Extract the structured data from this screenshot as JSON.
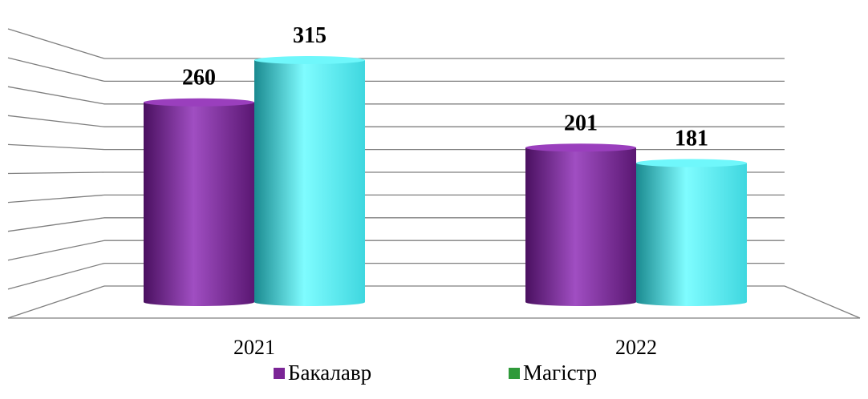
{
  "chart_data": {
    "type": "bar",
    "title": "",
    "xlabel": "",
    "ylabel": "",
    "categories": [
      "2021",
      "2022"
    ],
    "series": [
      {
        "name": "Бакалавр",
        "values": [
          260,
          201
        ],
        "color": "#8b2ea8",
        "legend_color": "#7b2596"
      },
      {
        "name": "Магістр",
        "values": [
          315,
          181
        ],
        "color": "#3fe3e8",
        "legend_color": "#2f9a3a"
      }
    ],
    "ylim": [
      0,
      350
    ],
    "grid": true,
    "legend": "bottom",
    "style": "3d-cylinder"
  }
}
